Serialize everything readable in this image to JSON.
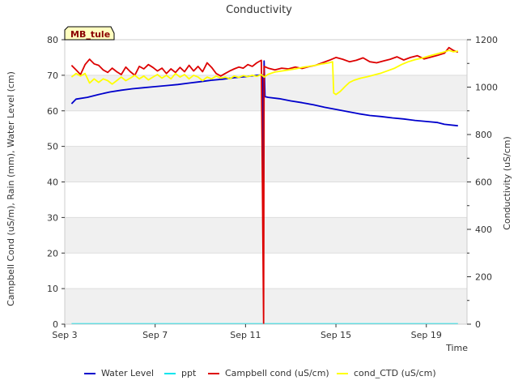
{
  "chart_data": {
    "type": "line",
    "title": "Conductivity",
    "site_label": "MB_tule",
    "xlabel": "Time",
    "ylabel_left": "Campbell Cond (uS/m), Rain (mm), Water Level (cm)",
    "ylabel_right": "Conductivity (uS/cm)",
    "x_ticks": [
      {
        "day": 3,
        "label": "Sep 3"
      },
      {
        "day": 7,
        "label": "Sep 7"
      },
      {
        "day": 11,
        "label": "Sep 11"
      },
      {
        "day": 15,
        "label": "Sep 15"
      },
      {
        "day": 19,
        "label": "Sep 19"
      }
    ],
    "xlim": [
      3,
      20.8
    ],
    "ylim_left": [
      0,
      80
    ],
    "ylim_right": [
      0,
      1200
    ],
    "y_ticks_left": [
      0,
      10,
      20,
      30,
      40,
      50,
      60,
      70,
      80
    ],
    "y_ticks_right": [
      0,
      200,
      400,
      600,
      800,
      1000,
      1200
    ],
    "series": [
      {
        "name": "Water Level",
        "color": "#0000cc",
        "axis": "left",
        "points": [
          [
            3.3,
            62.0
          ],
          [
            3.5,
            63.3
          ],
          [
            4,
            63.8
          ],
          [
            4.5,
            64.6
          ],
          [
            5,
            65.3
          ],
          [
            5.5,
            65.8
          ],
          [
            6,
            66.2
          ],
          [
            6.5,
            66.5
          ],
          [
            7,
            66.8
          ],
          [
            7.5,
            67.1
          ],
          [
            8,
            67.4
          ],
          [
            8.5,
            67.8
          ],
          [
            9,
            68.2
          ],
          [
            9.5,
            68.6
          ],
          [
            10,
            68.9
          ],
          [
            10.5,
            69.3
          ],
          [
            11,
            69.6
          ],
          [
            11.5,
            70.0
          ],
          [
            11.75,
            70.1
          ],
          [
            11.78,
            25.5
          ],
          [
            11.82,
            74.0
          ],
          [
            11.86,
            64.0
          ],
          [
            12,
            63.8
          ],
          [
            12.5,
            63.4
          ],
          [
            13,
            62.8
          ],
          [
            13.5,
            62.3
          ],
          [
            14,
            61.7
          ],
          [
            14.5,
            61.0
          ],
          [
            15,
            60.4
          ],
          [
            15.5,
            59.8
          ],
          [
            16,
            59.2
          ],
          [
            16.5,
            58.7
          ],
          [
            17,
            58.4
          ],
          [
            17.5,
            58.0
          ],
          [
            18,
            57.7
          ],
          [
            18.5,
            57.3
          ],
          [
            19,
            57.0
          ],
          [
            19.5,
            56.7
          ],
          [
            19.8,
            56.2
          ],
          [
            20.4,
            55.8
          ]
        ]
      },
      {
        "name": "ppt",
        "color": "#00e5ee",
        "axis": "left",
        "points": [
          [
            3.3,
            0.1
          ],
          [
            20.4,
            0.1
          ]
        ]
      },
      {
        "name": "Campbell cond (uS/cm)",
        "color": "#dd0000",
        "axis": "left",
        "points": [
          [
            3.3,
            72.8
          ],
          [
            3.5,
            71.5
          ],
          [
            3.7,
            70.2
          ],
          [
            3.9,
            73.0
          ],
          [
            4.1,
            74.5
          ],
          [
            4.3,
            73.2
          ],
          [
            4.5,
            72.8
          ],
          [
            4.7,
            71.5
          ],
          [
            4.9,
            70.8
          ],
          [
            5.1,
            72.0
          ],
          [
            5.3,
            71.0
          ],
          [
            5.5,
            70.2
          ],
          [
            5.7,
            72.3
          ],
          [
            5.9,
            71.0
          ],
          [
            6.1,
            70.0
          ],
          [
            6.3,
            72.5
          ],
          [
            6.5,
            71.8
          ],
          [
            6.7,
            73.0
          ],
          [
            6.9,
            72.2
          ],
          [
            7.1,
            71.2
          ],
          [
            7.3,
            72.0
          ],
          [
            7.5,
            70.5
          ],
          [
            7.7,
            71.8
          ],
          [
            7.9,
            70.8
          ],
          [
            8.1,
            72.2
          ],
          [
            8.3,
            71.0
          ],
          [
            8.5,
            72.8
          ],
          [
            8.7,
            71.2
          ],
          [
            8.9,
            72.5
          ],
          [
            9.1,
            71.0
          ],
          [
            9.3,
            73.5
          ],
          [
            9.5,
            72.2
          ],
          [
            9.7,
            70.5
          ],
          [
            9.9,
            69.8
          ],
          [
            10.1,
            70.5
          ],
          [
            10.3,
            71.2
          ],
          [
            10.5,
            71.8
          ],
          [
            10.7,
            72.3
          ],
          [
            10.9,
            72.0
          ],
          [
            11.1,
            73.0
          ],
          [
            11.3,
            72.5
          ],
          [
            11.5,
            73.5
          ],
          [
            11.7,
            74.2
          ],
          [
            11.8,
            0.2
          ],
          [
            11.82,
            72.5
          ],
          [
            12,
            72.0
          ],
          [
            12.3,
            71.5
          ],
          [
            12.6,
            72.0
          ],
          [
            12.9,
            71.8
          ],
          [
            13.2,
            72.3
          ],
          [
            13.5,
            71.9
          ],
          [
            13.8,
            72.4
          ],
          [
            14.1,
            72.8
          ],
          [
            14.4,
            73.5
          ],
          [
            14.7,
            74.2
          ],
          [
            15,
            75.0
          ],
          [
            15.3,
            74.5
          ],
          [
            15.6,
            73.8
          ],
          [
            15.9,
            74.2
          ],
          [
            16.2,
            74.9
          ],
          [
            16.5,
            73.8
          ],
          [
            16.8,
            73.5
          ],
          [
            17.1,
            74.0
          ],
          [
            17.4,
            74.5
          ],
          [
            17.7,
            75.2
          ],
          [
            18,
            74.3
          ],
          [
            18.3,
            75.0
          ],
          [
            18.6,
            75.5
          ],
          [
            18.9,
            74.6
          ],
          [
            19.2,
            75.1
          ],
          [
            19.5,
            75.6
          ],
          [
            19.8,
            76.2
          ],
          [
            20,
            77.8
          ],
          [
            20.2,
            77.0
          ],
          [
            20.4,
            76.5
          ]
        ]
      },
      {
        "name": "cond_CTD (uS/cm)",
        "color": "#ffff00",
        "axis": "left",
        "points": [
          [
            3.3,
            69.5
          ],
          [
            3.5,
            70.5
          ],
          [
            3.7,
            69.8
          ],
          [
            3.9,
            70.5
          ],
          [
            4.1,
            67.8
          ],
          [
            4.3,
            69.0
          ],
          [
            4.5,
            68.0
          ],
          [
            4.7,
            69.0
          ],
          [
            4.9,
            68.5
          ],
          [
            5.1,
            67.5
          ],
          [
            5.3,
            68.5
          ],
          [
            5.5,
            69.5
          ],
          [
            5.7,
            68.5
          ],
          [
            5.9,
            69.2
          ],
          [
            6.1,
            70.0
          ],
          [
            6.3,
            69.0
          ],
          [
            6.5,
            69.8
          ],
          [
            6.7,
            68.7
          ],
          [
            6.9,
            69.5
          ],
          [
            7.1,
            70.2
          ],
          [
            7.3,
            69.2
          ],
          [
            7.5,
            70.0
          ],
          [
            7.7,
            69.0
          ],
          [
            7.9,
            70.5
          ],
          [
            8.1,
            69.5
          ],
          [
            8.3,
            70.2
          ],
          [
            8.5,
            69.0
          ],
          [
            8.7,
            70.0
          ],
          [
            8.9,
            69.5
          ],
          [
            9.1,
            68.5
          ],
          [
            9.3,
            69.5
          ],
          [
            9.5,
            69.0
          ],
          [
            9.7,
            69.8
          ],
          [
            9.9,
            69.2
          ],
          [
            10.1,
            69.5
          ],
          [
            10.3,
            69.0
          ],
          [
            10.5,
            69.8
          ],
          [
            10.7,
            69.4
          ],
          [
            10.9,
            69.9
          ],
          [
            11.1,
            69.6
          ],
          [
            11.3,
            70.0
          ],
          [
            11.5,
            69.7
          ],
          [
            11.7,
            70.2
          ],
          [
            11.82,
            69.5
          ],
          [
            12,
            70.3
          ],
          [
            12.3,
            70.9
          ],
          [
            12.6,
            71.2
          ],
          [
            12.9,
            71.5
          ],
          [
            13.2,
            71.8
          ],
          [
            13.5,
            72.2
          ],
          [
            13.8,
            72.5
          ],
          [
            14.1,
            72.8
          ],
          [
            14.4,
            73.2
          ],
          [
            14.7,
            73.5
          ],
          [
            14.85,
            73.8
          ],
          [
            14.9,
            65.0
          ],
          [
            15,
            64.6
          ],
          [
            15.2,
            65.5
          ],
          [
            15.4,
            66.8
          ],
          [
            15.6,
            68.0
          ],
          [
            15.8,
            68.6
          ],
          [
            16.1,
            69.2
          ],
          [
            16.4,
            69.6
          ],
          [
            16.7,
            70.1
          ],
          [
            17,
            70.6
          ],
          [
            17.3,
            71.3
          ],
          [
            17.6,
            72.0
          ],
          [
            17.9,
            73.0
          ],
          [
            18.2,
            73.8
          ],
          [
            18.5,
            74.4
          ],
          [
            18.8,
            74.8
          ],
          [
            19.1,
            75.4
          ],
          [
            19.4,
            75.9
          ],
          [
            19.7,
            76.4
          ],
          [
            20,
            77.0
          ],
          [
            20.2,
            76.6
          ],
          [
            20.4,
            76.8
          ]
        ]
      }
    ],
    "bands": [
      [
        0,
        10
      ],
      [
        20,
        30
      ],
      [
        40,
        50
      ],
      [
        60,
        70
      ]
    ],
    "band_color": "#f0f0f0",
    "grid": true,
    "legend_placement": "bottom-center"
  }
}
